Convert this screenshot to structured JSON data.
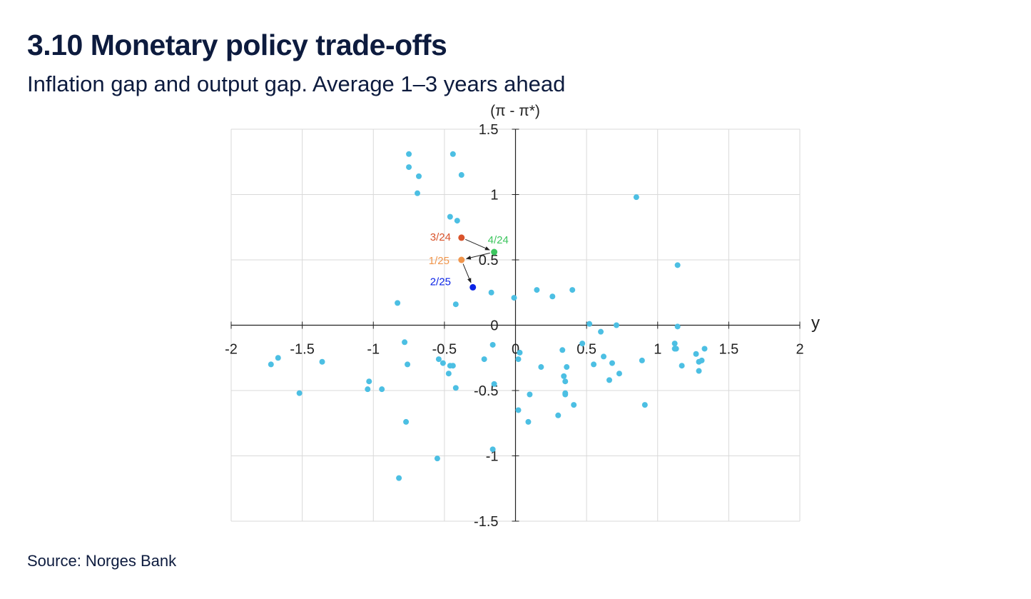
{
  "title": "3.10 Monetary policy trade-offs",
  "subtitle": "Inflation gap and output gap. Average 1–3 years ahead",
  "source": "Source: Norges Bank",
  "colors": {
    "history": "#4cbfe3",
    "q3_24": "#d9532b",
    "q4_24": "#3cc55e",
    "q1_25": "#f0954b",
    "q2_25": "#0b24e6",
    "grid": "#d9d9d9",
    "axis": "#222222"
  },
  "chart_data": {
    "type": "scatter",
    "title": "3.10 Monetary policy trade-offs",
    "subtitle": "Inflation gap and output gap. Average 1–3 years ahead",
    "xlabel": "y",
    "ylabel": "(π - π*)",
    "xlim": [
      -2,
      2
    ],
    "ylim": [
      -1.5,
      1.5
    ],
    "xticks": [
      "-2",
      "-1.5",
      "-1",
      "-0.5",
      "0",
      "0.5",
      "1",
      "1.5",
      "2"
    ],
    "yticks": [
      "1.5",
      "1",
      "0.5",
      "0",
      "-0.5",
      "-1",
      "-1.5"
    ],
    "grid": true,
    "history": [
      [
        -0.75,
        1.31
      ],
      [
        -0.44,
        1.31
      ],
      [
        -0.75,
        1.21
      ],
      [
        -0.68,
        1.14
      ],
      [
        -0.38,
        1.15
      ],
      [
        -0.69,
        1.01
      ],
      [
        -0.46,
        0.83
      ],
      [
        -0.41,
        0.8
      ],
      [
        0.85,
        0.98
      ],
      [
        1.14,
        0.46
      ],
      [
        -0.83,
        0.17
      ],
      [
        -0.42,
        0.16
      ],
      [
        -0.17,
        0.25
      ],
      [
        -0.01,
        0.21
      ],
      [
        0.15,
        0.27
      ],
      [
        0.26,
        0.22
      ],
      [
        0.4,
        0.27
      ],
      [
        0.52,
        0.01
      ],
      [
        0.6,
        -0.05
      ],
      [
        0.71,
        0.0
      ],
      [
        1.14,
        -0.01
      ],
      [
        -0.78,
        -0.13
      ],
      [
        -0.16,
        -0.15
      ],
      [
        0.03,
        -0.21
      ],
      [
        0.33,
        -0.19
      ],
      [
        0.47,
        -0.14
      ],
      [
        1.12,
        -0.14
      ],
      [
        1.12,
        -0.18
      ],
      [
        1.13,
        -0.18
      ],
      [
        1.33,
        -0.18
      ],
      [
        1.27,
        -0.22
      ],
      [
        -1.67,
        -0.25
      ],
      [
        -1.72,
        -0.3
      ],
      [
        -1.36,
        -0.28
      ],
      [
        -0.54,
        -0.26
      ],
      [
        -0.51,
        -0.29
      ],
      [
        -0.46,
        -0.31
      ],
      [
        -0.44,
        -0.31
      ],
      [
        -0.47,
        -0.37
      ],
      [
        -0.76,
        -0.3
      ],
      [
        -0.22,
        -0.26
      ],
      [
        0.02,
        -0.26
      ],
      [
        0.18,
        -0.32
      ],
      [
        0.36,
        -0.32
      ],
      [
        0.55,
        -0.3
      ],
      [
        0.62,
        -0.24
      ],
      [
        0.68,
        -0.29
      ],
      [
        0.73,
        -0.37
      ],
      [
        0.89,
        -0.27
      ],
      [
        1.17,
        -0.31
      ],
      [
        1.31,
        -0.27
      ],
      [
        1.29,
        -0.28
      ],
      [
        1.29,
        -0.35
      ],
      [
        0.34,
        -0.39
      ],
      [
        0.35,
        -0.43
      ],
      [
        0.66,
        -0.42
      ],
      [
        -1.03,
        -0.43
      ],
      [
        -1.04,
        -0.49
      ],
      [
        -0.94,
        -0.49
      ],
      [
        -0.42,
        -0.48
      ],
      [
        -0.15,
        -0.45
      ],
      [
        -1.52,
        -0.52
      ],
      [
        0.1,
        -0.53
      ],
      [
        0.35,
        -0.52
      ],
      [
        0.35,
        -0.53
      ],
      [
        0.02,
        -0.65
      ],
      [
        0.41,
        -0.61
      ],
      [
        0.3,
        -0.69
      ],
      [
        0.91,
        -0.61
      ],
      [
        -0.77,
        -0.74
      ],
      [
        0.09,
        -0.74
      ],
      [
        -0.16,
        -0.95
      ],
      [
        -0.55,
        -1.02
      ],
      [
        -0.82,
        -1.17
      ]
    ],
    "labelled": [
      {
        "label": "3/24",
        "x": -0.38,
        "y": 0.67,
        "color_key": "q3_24"
      },
      {
        "label": "4/24",
        "x": -0.15,
        "y": 0.56,
        "color_key": "q4_24"
      },
      {
        "label": "1/25",
        "x": -0.38,
        "y": 0.5,
        "color_key": "q1_25"
      },
      {
        "label": "2/25",
        "x": -0.3,
        "y": 0.29,
        "color_key": "q2_25"
      }
    ],
    "arrows": [
      {
        "from": "3/24",
        "to": "4/24"
      },
      {
        "from": "4/24",
        "to": "1/25"
      },
      {
        "from": "1/25",
        "to": "2/25"
      }
    ]
  }
}
